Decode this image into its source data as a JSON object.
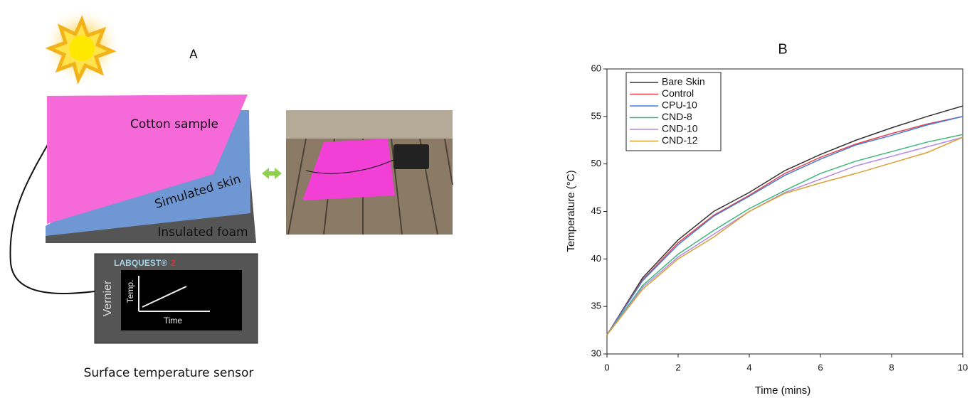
{
  "diagram": {
    "label": "A",
    "cotton": "Cotton sample",
    "skin": "Simulated skin",
    "foam": "Insulated foam",
    "device_brand": "LABQUEST®",
    "device_model": "2",
    "maker": "Vernier",
    "screen_y": "Temp.",
    "screen_x": "Time",
    "caption": "Surface temperature sensor"
  },
  "chart_data": {
    "type": "line",
    "title": "B",
    "x_label": "Time (mins)",
    "y_label": "Temperature (°C)",
    "x": [
      0,
      1,
      2,
      3,
      4,
      5,
      6,
      7,
      8,
      9,
      10
    ],
    "xlim": [
      0,
      10
    ],
    "xticks": [
      0,
      2,
      4,
      6,
      8,
      10
    ],
    "ylim": [
      30,
      60
    ],
    "yticks": [
      30,
      35,
      40,
      45,
      50,
      55,
      60
    ],
    "legend": "upper left",
    "grid": false,
    "series": [
      {
        "name": "Bare Skin",
        "color": "#333333",
        "values": [
          32,
          38,
          42,
          45,
          47,
          49.3,
          51,
          52.5,
          53.8,
          55,
          56.1
        ]
      },
      {
        "name": "Control",
        "color": "#e8434f",
        "values": [
          32,
          37.8,
          41.7,
          44.6,
          46.7,
          49,
          50.7,
          52.1,
          53.2,
          54.2,
          55
        ]
      },
      {
        "name": "CPU-10",
        "color": "#3f7fd9",
        "values": [
          32,
          37.7,
          41.5,
          44.5,
          46.6,
          48.8,
          50.5,
          52,
          53,
          54.1,
          55
        ]
      },
      {
        "name": "CND-8",
        "color": "#3fb77a",
        "values": [
          32,
          37.2,
          40.5,
          43,
          45.3,
          47.2,
          49,
          50.3,
          51.3,
          52.3,
          53.1
        ]
      },
      {
        "name": "CND-10",
        "color": "#b48be6",
        "values": [
          32,
          37,
          40.2,
          42.6,
          45,
          47,
          48.4,
          49.8,
          50.8,
          51.8,
          52.8
        ]
      },
      {
        "name": "CND-12",
        "color": "#d9a032",
        "values": [
          32,
          36.8,
          40,
          42.3,
          45,
          46.9,
          48,
          49,
          50.1,
          51.2,
          52.8
        ]
      }
    ]
  }
}
